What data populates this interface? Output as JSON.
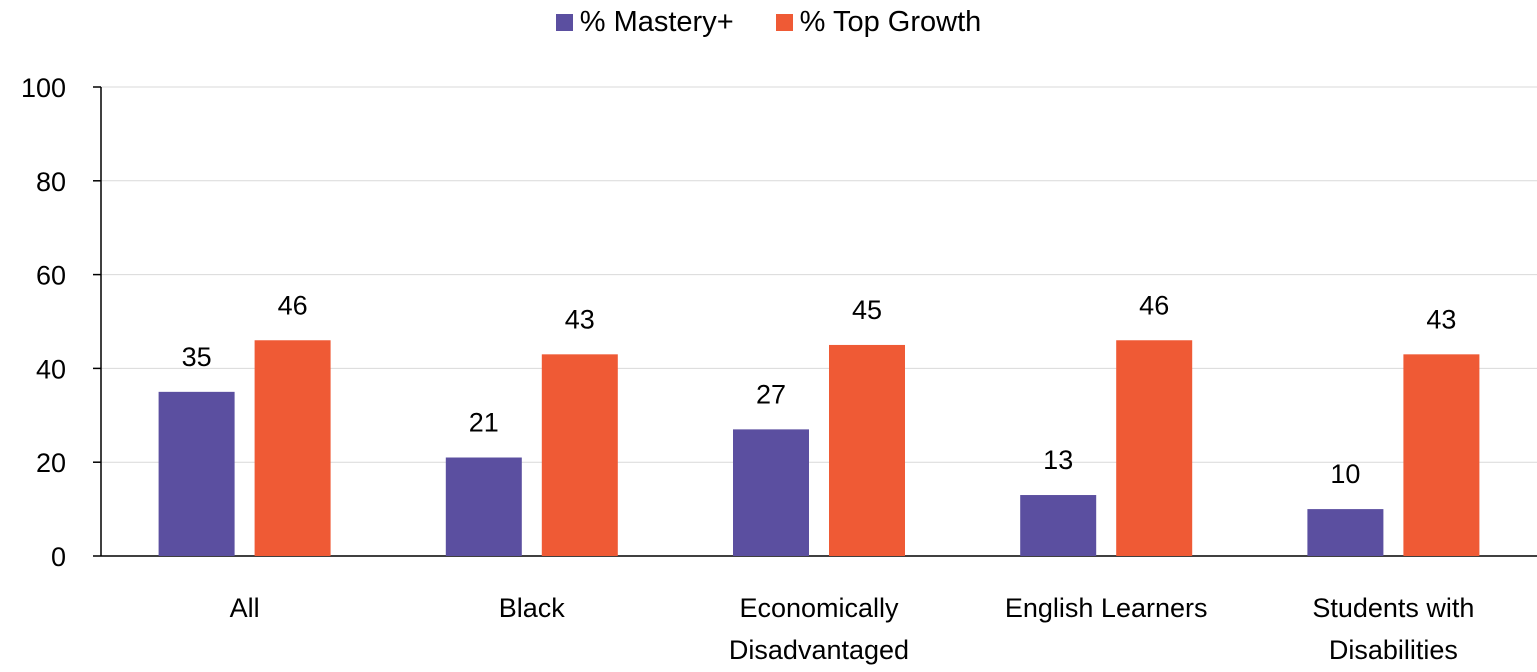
{
  "chart_data": {
    "type": "bar",
    "title": "",
    "xlabel": "",
    "ylabel": "",
    "categories": [
      [
        "All"
      ],
      [
        "Black"
      ],
      [
        "Economically",
        "Disadvantaged"
      ],
      [
        "English Learners"
      ],
      [
        "Students with",
        "Disabilities"
      ]
    ],
    "series": [
      {
        "name": "% Mastery+",
        "values": [
          35,
          21,
          27,
          13,
          10
        ],
        "color": "#5b4fa0"
      },
      {
        "name": "% Top Growth",
        "values": [
          46,
          43,
          45,
          46,
          43
        ],
        "color": "#ef5a35"
      }
    ],
    "ylim": [
      0,
      100
    ],
    "yticks": [
      "0",
      "20",
      "40",
      "60",
      "80",
      "100"
    ],
    "ytick_values": [
      0,
      20,
      40,
      60,
      80,
      100
    ],
    "grid": true,
    "legend_position": "top-center"
  }
}
